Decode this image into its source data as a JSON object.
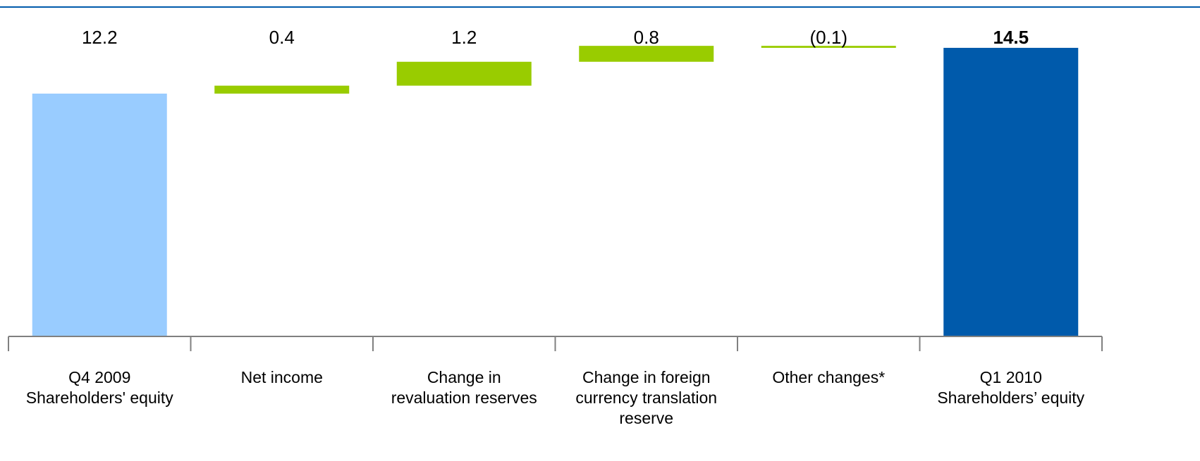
{
  "chart_data": {
    "type": "bar",
    "variant": "waterfall",
    "categories": [
      [
        "Q4 2009",
        "Shareholders' equity"
      ],
      [
        "Net income"
      ],
      [
        "Change in",
        "revaluation reserves"
      ],
      [
        "Change in foreign",
        "currency translation",
        "reserve"
      ],
      [
        "Other changes*"
      ],
      [
        "Q1 2010",
        "Shareholders’ equity"
      ]
    ],
    "values": [
      12.2,
      0.4,
      1.2,
      0.8,
      -0.1,
      14.5
    ],
    "value_labels": [
      "12.2",
      "0.4",
      "1.2",
      "0.8",
      "(0.1)",
      "14.5"
    ],
    "bar_roles": [
      "total",
      "change",
      "change",
      "change",
      "change",
      "total"
    ],
    "bold_value_index": 5,
    "title": "",
    "xlabel": "",
    "ylabel": "",
    "ylim": [
      0,
      16.55
    ],
    "grid": false,
    "colors": {
      "start_total": "#99ccff",
      "change": "#99cc00",
      "end_total": "#005aab",
      "top_rule": "#005aab",
      "axis": "#808080",
      "text": "#000000"
    }
  }
}
